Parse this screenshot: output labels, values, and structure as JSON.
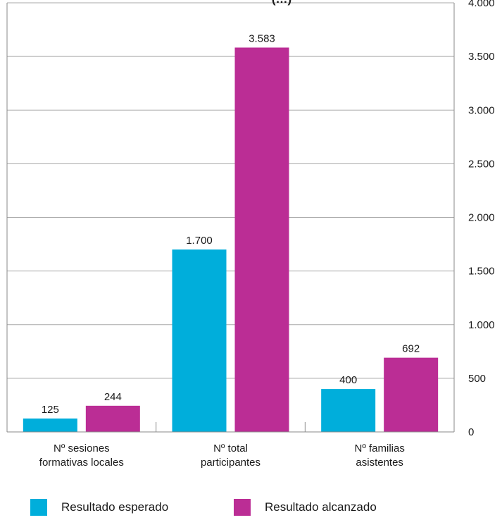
{
  "chart_data": {
    "type": "bar",
    "title": "(…)",
    "categories": [
      [
        "Nº sesiones",
        "formativas locales"
      ],
      [
        "Nº total",
        "participantes"
      ],
      [
        "Nº familias",
        "asistentes"
      ]
    ],
    "series": [
      {
        "name": "Resultado esperado",
        "color": "#00aedb",
        "values": [
          125,
          1700,
          400
        ],
        "labels": [
          "125",
          "1.700",
          "400"
        ]
      },
      {
        "name": "Resultado alcanzado",
        "color": "#bb2d95",
        "values": [
          244,
          3583,
          692
        ],
        "labels": [
          "244",
          "3.583",
          "692"
        ]
      }
    ],
    "ylim": [
      0,
      4000
    ],
    "yticks": [
      0,
      500,
      1000,
      1500,
      2000,
      2500,
      3000,
      3500,
      4000
    ],
    "ytick_labels": [
      "0",
      "500",
      "1.000",
      "1.500",
      "2.000",
      "2.500",
      "3.000",
      "3.500",
      "4.000"
    ],
    "y_axis_side": "right",
    "grid": true,
    "legend_position": "bottom"
  }
}
